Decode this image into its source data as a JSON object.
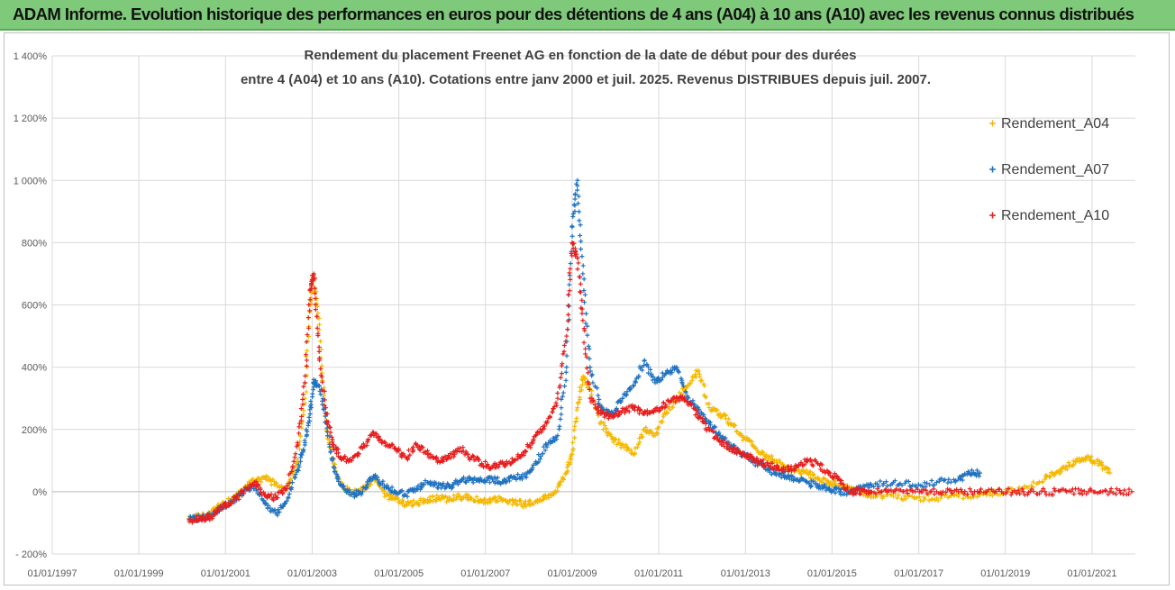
{
  "banner": {
    "title": "ADAM Informe. Evolution historique des performances en euros pour des détentions de 4 ans (A04) à 10 ans (A10) avec les revenus connus distribués"
  },
  "colors": {
    "banner_bg": "#7fc97a",
    "A04": "#f5b800",
    "A07": "#1f72c0",
    "A10": "#e61e1e"
  },
  "chart_data": {
    "type": "scatter",
    "title_lines": [
      "Rendement du placement Freenet AG en fonction de la date de début pour des durées",
      "entre 4 (A04) et 10 ans (A10). Cotations entre janv 2000 et juil. 2025. Revenus DISTRIBUES depuis juil. 2007."
    ],
    "ylim": [
      -200,
      1400
    ],
    "ytick_values": [
      -200,
      0,
      200,
      400,
      600,
      800,
      1000,
      1200,
      1400
    ],
    "ytick_labels": [
      "- 200%",
      "0%",
      "200%",
      "400%",
      "600%",
      "800%",
      "1 000%",
      "1 200%",
      "1 400%"
    ],
    "xlim": [
      "1997-01-01",
      "2022-01-01"
    ],
    "xtick_values": [
      "1997-01-01",
      "1999-01-01",
      "2001-01-01",
      "2003-01-01",
      "2005-01-01",
      "2007-01-01",
      "2009-01-01",
      "2011-01-01",
      "2013-01-01",
      "2015-01-01",
      "2017-01-01",
      "2019-01-01",
      "2021-01-01"
    ],
    "xtick_labels": [
      "01/01/1997",
      "01/01/1999",
      "01/01/2001",
      "01/01/2003",
      "01/01/2005",
      "01/01/2007",
      "01/01/2009",
      "01/01/2011",
      "01/01/2013",
      "01/01/2015",
      "01/01/2017",
      "01/01/2019",
      "01/01/2021"
    ],
    "grid": true,
    "legend_position": "right",
    "series": [
      {
        "name": "Rendement_A04",
        "color": "#f5b800",
        "x": [
          "2000-03-01",
          "2000-06-01",
          "2000-09-01",
          "2000-12-01",
          "2001-03-01",
          "2001-06-01",
          "2001-09-01",
          "2001-12-01",
          "2002-03-01",
          "2002-06-01",
          "2002-09-01",
          "2002-11-01",
          "2002-12-15",
          "2003-01-15",
          "2003-03-01",
          "2003-05-01",
          "2003-07-01",
          "2003-09-01",
          "2003-12-01",
          "2004-03-01",
          "2004-06-01",
          "2004-09-01",
          "2004-12-01",
          "2005-03-01",
          "2005-06-01",
          "2005-09-01",
          "2005-12-01",
          "2006-03-01",
          "2006-06-01",
          "2006-09-01",
          "2006-12-01",
          "2007-03-01",
          "2007-06-01",
          "2007-09-01",
          "2007-12-01",
          "2008-03-01",
          "2008-06-01",
          "2008-09-01",
          "2008-11-15",
          "2009-01-01",
          "2009-02-15",
          "2009-04-01",
          "2009-06-01",
          "2009-09-01",
          "2009-12-01",
          "2010-03-01",
          "2010-06-01",
          "2010-09-01",
          "2010-12-01",
          "2011-03-01",
          "2011-06-01",
          "2011-09-01",
          "2011-12-01",
          "2012-03-01",
          "2012-06-01",
          "2012-09-01",
          "2012-12-01",
          "2013-03-01",
          "2013-06-01",
          "2013-09-01",
          "2013-12-01",
          "2014-03-01",
          "2014-06-01",
          "2014-09-01",
          "2014-12-01",
          "2015-03-01",
          "2015-06-01",
          "2015-09-01",
          "2015-12-01",
          "2016-06-01",
          "2016-12-01",
          "2017-06-01",
          "2017-12-01",
          "2018-06-01",
          "2018-12-01",
          "2019-06-01",
          "2019-12-01",
          "2020-03-01",
          "2020-06-01",
          "2020-09-01",
          "2020-12-01",
          "2021-03-01",
          "2021-06-01"
        ],
        "y": [
          -85,
          -80,
          -70,
          -40,
          -25,
          5,
          35,
          45,
          25,
          10,
          95,
          300,
          600,
          700,
          520,
          200,
          90,
          20,
          -5,
          5,
          40,
          -5,
          -25,
          -40,
          -35,
          -25,
          -20,
          -25,
          -15,
          -20,
          -30,
          -25,
          -25,
          -35,
          -40,
          -30,
          -20,
          15,
          60,
          120,
          270,
          370,
          330,
          220,
          170,
          150,
          120,
          200,
          180,
          250,
          300,
          340,
          390,
          270,
          250,
          220,
          180,
          150,
          120,
          100,
          80,
          70,
          60,
          40,
          30,
          20,
          10,
          0,
          -10,
          -15,
          -20,
          -20,
          -15,
          -10,
          0,
          10,
          40,
          60,
          80,
          100,
          110,
          90,
          60
        ]
      },
      {
        "name": "Rendement_A07",
        "color": "#1f72c0",
        "x": [
          "2000-03-01",
          "2000-06-01",
          "2000-09-01",
          "2000-12-01",
          "2001-03-01",
          "2001-06-01",
          "2001-09-01",
          "2001-12-01",
          "2002-03-01",
          "2002-06-01",
          "2002-09-01",
          "2002-11-01",
          "2002-12-15",
          "2003-01-15",
          "2003-03-01",
          "2003-05-01",
          "2003-07-01",
          "2003-09-01",
          "2003-12-01",
          "2004-03-01",
          "2004-06-01",
          "2004-09-01",
          "2004-12-01",
          "2005-03-01",
          "2005-06-01",
          "2005-09-01",
          "2005-12-01",
          "2006-03-01",
          "2006-06-01",
          "2006-09-01",
          "2006-12-01",
          "2007-03-01",
          "2007-06-01",
          "2007-09-01",
          "2007-12-01",
          "2008-03-01",
          "2008-06-01",
          "2008-09-01",
          "2008-11-15",
          "2009-01-01",
          "2009-02-15",
          "2009-04-01",
          "2009-06-01",
          "2009-09-01",
          "2009-12-01",
          "2010-03-01",
          "2010-06-01",
          "2010-09-01",
          "2010-12-01",
          "2011-03-01",
          "2011-06-01",
          "2011-09-01",
          "2011-12-01",
          "2012-03-01",
          "2012-06-01",
          "2012-09-01",
          "2012-12-01",
          "2013-03-01",
          "2013-06-01",
          "2013-09-01",
          "2013-12-01",
          "2014-03-01",
          "2014-06-01",
          "2014-09-01",
          "2014-12-01",
          "2015-03-01",
          "2015-06-01",
          "2015-09-01",
          "2015-12-01",
          "2016-06-01",
          "2016-12-01",
          "2017-06-01",
          "2017-12-01",
          "2018-03-01",
          "2018-06-01"
        ],
        "y": [
          -88,
          -85,
          -75,
          -50,
          -30,
          0,
          20,
          -40,
          -70,
          -30,
          70,
          150,
          250,
          360,
          340,
          220,
          80,
          20,
          -10,
          0,
          50,
          20,
          0,
          -10,
          10,
          30,
          20,
          15,
          35,
          40,
          35,
          40,
          30,
          45,
          50,
          90,
          150,
          180,
          400,
          850,
          1000,
          700,
          400,
          270,
          250,
          300,
          340,
          420,
          350,
          380,
          400,
          300,
          260,
          220,
          180,
          150,
          120,
          100,
          80,
          60,
          50,
          40,
          30,
          20,
          10,
          0,
          0,
          10,
          20,
          30,
          20,
          30,
          40,
          60,
          60
        ]
      },
      {
        "name": "Rendement_A10",
        "color": "#e61e1e",
        "x": [
          "2000-03-01",
          "2000-06-01",
          "2000-09-01",
          "2000-12-01",
          "2001-03-01",
          "2001-06-01",
          "2001-09-01",
          "2001-12-01",
          "2002-03-01",
          "2002-06-01",
          "2002-09-01",
          "2002-11-01",
          "2002-12-15",
          "2003-01-15",
          "2003-03-01",
          "2003-05-01",
          "2003-07-01",
          "2003-09-01",
          "2003-12-01",
          "2004-03-01",
          "2004-06-01",
          "2004-09-01",
          "2004-12-01",
          "2005-03-01",
          "2005-06-01",
          "2005-09-01",
          "2005-12-01",
          "2006-03-01",
          "2006-06-01",
          "2006-09-01",
          "2006-12-01",
          "2007-03-01",
          "2007-06-01",
          "2007-09-01",
          "2007-12-01",
          "2008-03-01",
          "2008-06-01",
          "2008-09-01",
          "2008-11-15",
          "2009-01-01",
          "2009-02-15",
          "2009-04-01",
          "2009-06-01",
          "2009-09-01",
          "2009-12-01",
          "2010-03-01",
          "2010-06-01",
          "2010-09-01",
          "2010-12-01",
          "2011-03-01",
          "2011-06-01",
          "2011-09-01",
          "2011-12-01",
          "2012-03-01",
          "2012-06-01",
          "2012-09-01",
          "2012-12-01",
          "2013-03-01",
          "2013-06-01",
          "2013-09-01",
          "2013-12-01",
          "2014-03-01",
          "2014-06-01",
          "2014-09-01",
          "2014-12-01",
          "2015-03-01",
          "2015-06-01",
          "2015-09-01",
          "2015-12-01",
          "2016-06-01",
          "2016-12-01",
          "2017-06-01",
          "2017-12-01",
          "2018-06-01",
          "2018-12-01",
          "2019-06-01",
          "2019-12-01",
          "2020-06-01",
          "2020-12-01",
          "2021-06-01",
          "2021-12-01"
        ],
        "y": [
          -90,
          -88,
          -80,
          -50,
          -30,
          0,
          30,
          -10,
          -20,
          10,
          150,
          350,
          650,
          700,
          450,
          250,
          150,
          110,
          100,
          140,
          190,
          160,
          140,
          110,
          150,
          120,
          100,
          110,
          140,
          110,
          90,
          80,
          90,
          100,
          130,
          180,
          220,
          300,
          500,
          800,
          750,
          550,
          300,
          250,
          240,
          260,
          270,
          250,
          260,
          280,
          300,
          290,
          240,
          200,
          160,
          140,
          120,
          110,
          90,
          80,
          70,
          80,
          100,
          90,
          60,
          40,
          0,
          0,
          0,
          0,
          0,
          0,
          0,
          0,
          0,
          0,
          0,
          0,
          0,
          0,
          0
        ]
      }
    ]
  }
}
